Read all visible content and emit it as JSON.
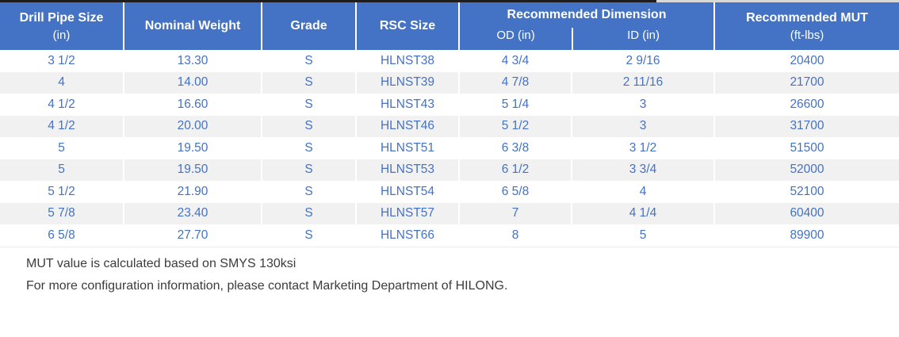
{
  "table": {
    "header": {
      "drill_pipe": {
        "label": "Drill Pipe Size",
        "sub": "(in)"
      },
      "nominal_weight": {
        "label": "Nominal Weight"
      },
      "grade": {
        "label": "Grade"
      },
      "rsc_size": {
        "label": "RSC Size"
      },
      "dimension": {
        "label": "Recommended Dimension",
        "od": "OD (in)",
        "id": "ID (in)"
      },
      "mut": {
        "label": "Recommended MUT",
        "sub": "(ft-lbs)"
      }
    },
    "rows": [
      [
        "3 1/2",
        "13.30",
        "S",
        "HLNST38",
        "4 3/4",
        "2 9/16",
        "20400"
      ],
      [
        "4",
        "14.00",
        "S",
        "HLNST39",
        "4 7/8",
        "2 11/16",
        "21700"
      ],
      [
        "4 1/2",
        "16.60",
        "S",
        "HLNST43",
        "5 1/4",
        "3",
        "26600"
      ],
      [
        "4 1/2",
        "20.00",
        "S",
        "HLNST46",
        "5 1/2",
        "3",
        "31700"
      ],
      [
        "5",
        "19.50",
        "S",
        "HLNST51",
        "6 3/8",
        "3 1/2",
        "51500"
      ],
      [
        "5",
        "19.50",
        "S",
        "HLNST53",
        "6 1/2",
        "3 3/4",
        "52000"
      ],
      [
        "5 1/2",
        "21.90",
        "S",
        "HLNST54",
        "6 5/8",
        "4",
        "52100"
      ],
      [
        "5 7/8",
        "23.40",
        "S",
        "HLNST57",
        "7",
        "4 1/4",
        "60400"
      ],
      [
        "6 5/8",
        "27.70",
        "S",
        "HLNST66",
        "8",
        "5",
        "89900"
      ]
    ]
  },
  "notes": {
    "line1": "MUT value is calculated based on SMYS 130ksi",
    "line2": "For more configuration information, please contact Marketing Department of HILONG."
  },
  "colors": {
    "header_bg": "#4472c4",
    "data_text": "#4472c4",
    "stripe": "#f1f1f2",
    "note_text": "#3c3c3c"
  }
}
